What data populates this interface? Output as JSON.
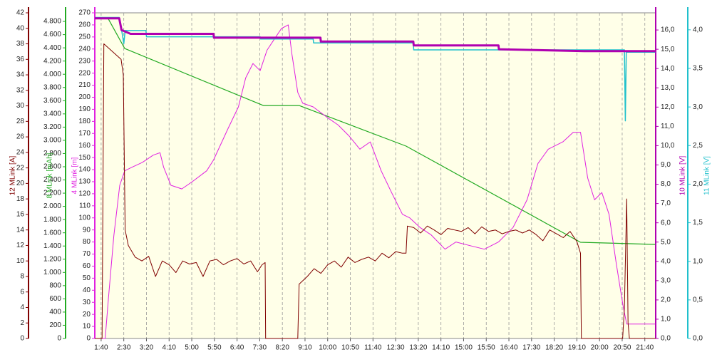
{
  "chart_data": {
    "type": "line",
    "xlim": [
      86,
      1324
    ],
    "xticks": [
      {
        "value": 100,
        "label": "1:40"
      },
      {
        "value": 150,
        "label": "2:30"
      },
      {
        "value": 200,
        "label": "3:20"
      },
      {
        "value": 250,
        "label": "4:10"
      },
      {
        "value": 300,
        "label": "5:00"
      },
      {
        "value": 350,
        "label": "5:50"
      },
      {
        "value": 400,
        "label": "6:40"
      },
      {
        "value": 450,
        "label": "7:30"
      },
      {
        "value": 500,
        "label": "8:20"
      },
      {
        "value": 550,
        "label": "9:10"
      },
      {
        "value": 600,
        "label": "10:00"
      },
      {
        "value": 650,
        "label": "10:50"
      },
      {
        "value": 700,
        "label": "11:40"
      },
      {
        "value": 750,
        "label": "12:30"
      },
      {
        "value": 800,
        "label": "13:20"
      },
      {
        "value": 850,
        "label": "14:10"
      },
      {
        "value": 900,
        "label": "15:00"
      },
      {
        "value": 950,
        "label": "15:50"
      },
      {
        "value": 1000,
        "label": "16:40"
      },
      {
        "value": 1050,
        "label": "17:30"
      },
      {
        "value": 1100,
        "label": "18:20"
      },
      {
        "value": 1150,
        "label": "19:10"
      },
      {
        "value": 1200,
        "label": "20:00"
      },
      {
        "value": 1250,
        "label": "20:50"
      },
      {
        "value": 1300,
        "label": "21:40"
      }
    ],
    "grid": true,
    "axes": [
      {
        "label": "12 MLink [A]",
        "color": "#800000",
        "side": "left",
        "ylim": [
          0,
          42
        ],
        "yticks": [
          0,
          2,
          4,
          6,
          8,
          10,
          12,
          14,
          16,
          18,
          20,
          22,
          24,
          26,
          28,
          30,
          32,
          34,
          36,
          38,
          40,
          42
        ]
      },
      {
        "label": "8 MLink [mAh]",
        "color": "#22aa22",
        "side": "left",
        "ylim": [
          0,
          4930
        ],
        "yticks": [
          0,
          200,
          400,
          600,
          800,
          {
            "value": 1000,
            "label": "1.000"
          },
          {
            "value": 1200,
            "label": "1.200"
          },
          {
            "value": 1400,
            "label": "1.400"
          },
          {
            "value": 1600,
            "label": "1.600"
          },
          {
            "value": 1800,
            "label": "1.800"
          },
          {
            "value": 2000,
            "label": "2.000"
          },
          {
            "value": 2200,
            "label": "2.200"
          },
          {
            "value": 2400,
            "label": "2.400"
          },
          {
            "value": 2600,
            "label": "2.600"
          },
          {
            "value": 2800,
            "label": "2.800"
          },
          {
            "value": 3000,
            "label": "3.000"
          },
          {
            "value": 3200,
            "label": "3.200"
          },
          {
            "value": 3400,
            "label": "3.400"
          },
          {
            "value": 3600,
            "label": "3.600"
          },
          {
            "value": 3800,
            "label": "3.800"
          },
          {
            "value": 4000,
            "label": "4.000"
          },
          {
            "value": 4200,
            "label": "4.200"
          },
          {
            "value": 4400,
            "label": "4.400"
          },
          {
            "value": 4600,
            "label": "4.600"
          },
          {
            "value": 4800,
            "label": "4.800"
          }
        ]
      },
      {
        "label": "4 MLink [m]",
        "color": "#e020e0",
        "side": "left",
        "ylim": [
          0,
          270
        ],
        "yticks": [
          0,
          10,
          20,
          30,
          40,
          50,
          60,
          70,
          80,
          90,
          100,
          110,
          120,
          130,
          140,
          150,
          160,
          170,
          180,
          190,
          200,
          210,
          220,
          230,
          240,
          250,
          260,
          270
        ]
      },
      {
        "label": "10 MLink [V]",
        "color": "#b000b0",
        "side": "right",
        "ylim": [
          0,
          16.89
        ],
        "yticks": [
          {
            "value": 0,
            "label": "0,0"
          },
          {
            "value": 1,
            "label": "1,0"
          },
          {
            "value": 2,
            "label": "2,0"
          },
          {
            "value": 3,
            "label": "3,0"
          },
          {
            "value": 4,
            "label": "4,0"
          },
          {
            "value": 5,
            "label": "5,0"
          },
          {
            "value": 6,
            "label": "6,0"
          },
          {
            "value": 7,
            "label": "7,0"
          },
          {
            "value": 8,
            "label": "8,0"
          },
          {
            "value": 9,
            "label": "9,0"
          },
          {
            "value": 10,
            "label": "10,0"
          },
          {
            "value": 11,
            "label": "11,0"
          },
          {
            "value": 12,
            "label": "12,0"
          },
          {
            "value": 13,
            "label": "13,0"
          },
          {
            "value": 14,
            "label": "14,0"
          },
          {
            "value": 15,
            "label": "15,0"
          },
          {
            "value": 16,
            "label": "16,0"
          }
        ]
      },
      {
        "label": "11 MLink [V]",
        "color": "#20c0cc",
        "side": "right",
        "ylim": [
          0,
          4.22
        ],
        "yticks": [
          {
            "value": 0,
            "label": "0,0"
          },
          {
            "value": 0.5,
            "label": "0,5"
          },
          {
            "value": 1,
            "label": "1,0"
          },
          {
            "value": 1.5,
            "label": "1,5"
          },
          {
            "value": 2,
            "label": "2,0"
          },
          {
            "value": 2.5,
            "label": "2,5"
          },
          {
            "value": 3,
            "label": "3,0"
          },
          {
            "value": 3.5,
            "label": "3,5"
          },
          {
            "value": 4,
            "label": "4,0"
          }
        ]
      }
    ],
    "series": [
      {
        "axis": 1,
        "color": "#22aa22",
        "width": 1.2,
        "x": [
          86,
          115,
          152,
          458,
          537,
          773,
          1158,
          1323
        ],
        "values": [
          4860,
          4850,
          4390,
          3527,
          3527,
          2913,
          1456,
          1424
        ]
      },
      {
        "axis": 2,
        "color": "#e020e0",
        "width": 1,
        "x": [
          86,
          109,
          116,
          128,
          141,
          152,
          168,
          191,
          215,
          230,
          238,
          254,
          278,
          301,
          333,
          348,
          380,
          403,
          419,
          435,
          451,
          466,
          482,
          498,
          513,
          521,
          534,
          545,
          568,
          600,
          623,
          647,
          671,
          694,
          718,
          741,
          765,
          781,
          804,
          828,
          859,
          883,
          914,
          946,
          977,
          1009,
          1040,
          1064,
          1087,
          1119,
          1142,
          1158,
          1174,
          1189,
          1205,
          1221,
          1237,
          1252,
          1260,
          1265,
          1323
        ],
        "values": [
          0,
          0,
          33,
          85,
          127,
          139,
          142,
          146,
          152,
          154,
          142,
          127,
          124,
          130,
          139,
          148,
          174,
          192,
          216,
          228,
          222,
          239,
          248,
          257,
          260,
          236,
          204,
          195,
          192,
          183,
          177,
          168,
          157,
          163,
          139,
          121,
          103,
          100,
          92,
          86,
          74,
          80,
          77,
          74,
          80,
          92,
          115,
          145,
          157,
          163,
          171,
          171,
          133,
          115,
          121,
          103,
          62,
          27,
          12,
          12,
          12
        ]
      },
      {
        "axis": 4,
        "color": "#20c0cc",
        "width": 1.5,
        "x": [
          86,
          140,
          146,
          150,
          153,
          199,
          200,
          451,
          452,
          568,
          569,
          789,
          790,
          1255,
          1257,
          1259,
          1323
        ],
        "values": [
          4.16,
          4.16,
          3.97,
          3.82,
          3.99,
          3.99,
          3.91,
          3.91,
          3.88,
          3.88,
          3.83,
          3.83,
          3.74,
          3.74,
          2.82,
          3.71,
          3.71
        ]
      },
      {
        "axis": 3,
        "color": "#b000b0",
        "width": 3,
        "x": [
          86,
          140,
          145,
          165,
          348,
          349,
          584,
          585,
          789,
          790,
          977,
          978,
          1166,
          1252,
          1260,
          1323
        ],
        "values": [
          16.6,
          16.6,
          16.0,
          15.8,
          15.8,
          15.6,
          15.6,
          15.4,
          15.4,
          15.2,
          15.2,
          15.0,
          14.9,
          14.9,
          14.9,
          14.9
        ]
      },
      {
        "axis": 0,
        "color": "#800000",
        "width": 1,
        "x": [
          86,
          102,
          106,
          125,
          144,
          149,
          153,
          160,
          175,
          190,
          205,
          220,
          235,
          250,
          265,
          280,
          295,
          310,
          325,
          340,
          355,
          370,
          385,
          400,
          415,
          430,
          445,
          455,
          462,
          463,
          534,
          537,
          555,
          570,
          585,
          600,
          615,
          630,
          645,
          660,
          675,
          690,
          705,
          720,
          735,
          750,
          765,
          773,
          776,
          790,
          805,
          820,
          835,
          850,
          865,
          880,
          895,
          910,
          925,
          940,
          955,
          970,
          985,
          1000,
          1015,
          1030,
          1045,
          1060,
          1075,
          1090,
          1105,
          1120,
          1135,
          1150,
          1158,
          1160,
          1251,
          1255,
          1260,
          1263,
          1266,
          1324
        ],
        "values": [
          0,
          0,
          38,
          37,
          36,
          34,
          14,
          12,
          10.5,
          10,
          10.6,
          8,
          10,
          9.5,
          8.5,
          10,
          9.6,
          9.8,
          8,
          10,
          10.2,
          9.5,
          10,
          10.3,
          9.6,
          10,
          8.6,
          9.5,
          9.8,
          0,
          0,
          7,
          8,
          9,
          8.4,
          9.5,
          10,
          9.2,
          10.5,
          9.8,
          10.2,
          10.5,
          10,
          11,
          10.4,
          11.2,
          11,
          11,
          14.5,
          14.3,
          13.6,
          14.5,
          14,
          13.4,
          14.2,
          14,
          13.8,
          14.3,
          13.5,
          14.4,
          13.8,
          14,
          13.5,
          13.8,
          14,
          13.6,
          14,
          13.4,
          12.6,
          14,
          13.5,
          13,
          13.8,
          12.5,
          11,
          0,
          0,
          4,
          18,
          2,
          0,
          0
        ]
      }
    ]
  }
}
